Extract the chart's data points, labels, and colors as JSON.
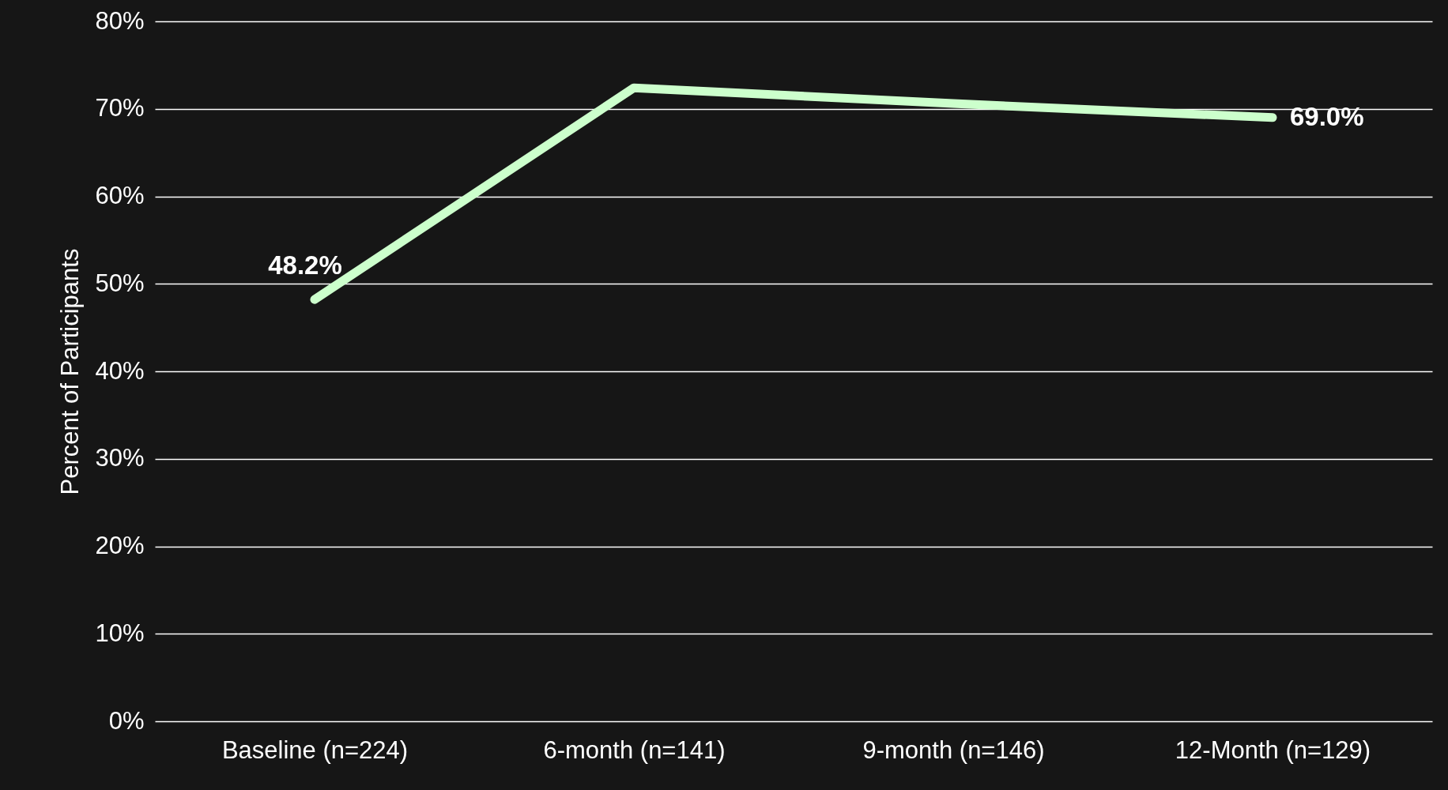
{
  "chart_data": {
    "type": "line",
    "ylabel": "Percent of Participants",
    "categories": [
      "Baseline (n=224)",
      "6-month (n=141)",
      "9-month (n=146)",
      "12-Month (n=129)"
    ],
    "series": [
      {
        "color": "#ccffcc",
        "values": [
          48.2,
          72.4,
          70.6,
          69.0
        ],
        "value_labels": [
          "48.2%",
          null,
          null,
          "69.0%"
        ]
      }
    ],
    "ylim": [
      0,
      80
    ],
    "yticks": [
      {
        "value": 0,
        "label": "0%"
      },
      {
        "value": 10,
        "label": "10%"
      },
      {
        "value": 20,
        "label": "20%"
      },
      {
        "value": 30,
        "label": "30%"
      },
      {
        "value": 40,
        "label": "40%"
      },
      {
        "value": 50,
        "label": "50%"
      },
      {
        "value": 60,
        "label": "60%"
      },
      {
        "value": 70,
        "label": "70%"
      },
      {
        "value": 80,
        "label": "80%"
      }
    ],
    "grid": "y",
    "marker": "none",
    "line_style": "solid"
  }
}
